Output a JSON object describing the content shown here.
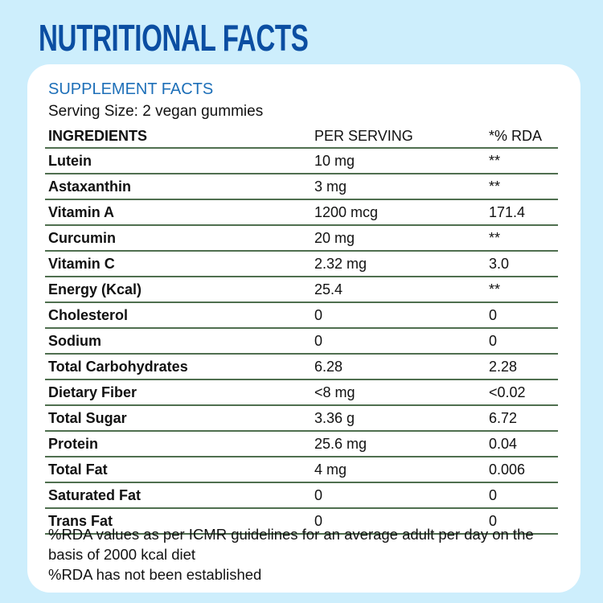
{
  "title": "NUTRITIONAL FACTS",
  "subtitle": "SUPPLEMENT FACTS",
  "serving_size": "Serving Size: 2 vegan gummies",
  "headers": [
    "INGREDIENTS",
    "PER SERVING",
    "*% RDA"
  ],
  "rows": [
    [
      "Lutein",
      "10 mg",
      "**"
    ],
    [
      "Astaxanthin",
      "3 mg",
      "**"
    ],
    [
      "Vitamin A",
      "1200 mcg",
      "171.4"
    ],
    [
      "Curcumin",
      "20 mg",
      "**"
    ],
    [
      "Vitamin C",
      "2.32 mg",
      "3.0"
    ],
    [
      "Energy (Kcal)",
      "25.4",
      "**"
    ],
    [
      "Cholesterol",
      "0",
      "0"
    ],
    [
      "Sodium",
      "0",
      "0"
    ],
    [
      "Total Carbohydrates",
      "6.28",
      "2.28"
    ],
    [
      "Dietary Fiber",
      "<8 mg",
      "<0.02"
    ],
    [
      "Total Sugar",
      "3.36 g",
      "6.72"
    ],
    [
      "Protein",
      "25.6 mg",
      "0.04"
    ],
    [
      "Total Fat",
      "4 mg",
      "0.006"
    ],
    [
      "Saturated Fat",
      "0",
      "0"
    ],
    [
      "Trans Fat",
      "0",
      "0"
    ]
  ],
  "notes": [
    "%RDA values as per ICMR guidelines for an average adult per day on the basis of 2000 kcal diet",
    "%RDA has not been established"
  ],
  "colors": {
    "background": "#cdeefc",
    "title": "#0b4ea2",
    "subtitle": "#1d6fb8",
    "rule": "#4f6f4f"
  }
}
